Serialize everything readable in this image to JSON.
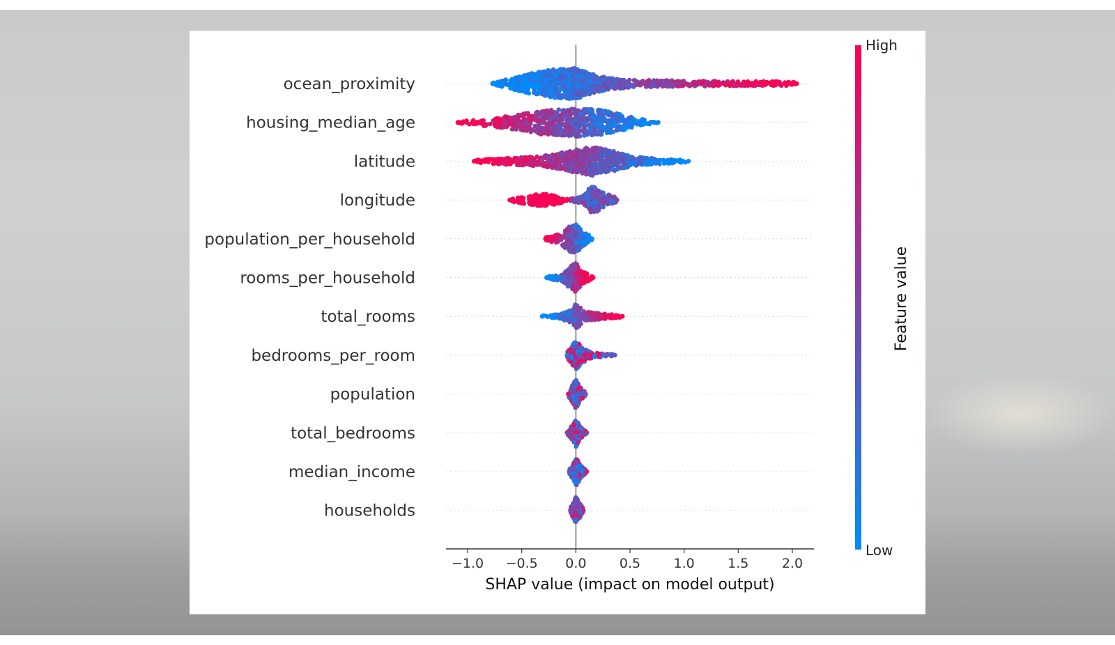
{
  "chart_data": {
    "type": "scatter",
    "subtype": "shap_beeswarm_summary",
    "xlabel": "SHAP value (impact on model output)",
    "xlim": [
      -1.2,
      2.2
    ],
    "xticks": [
      -1.0,
      -0.5,
      0.0,
      0.5,
      1.0,
      1.5,
      2.0
    ],
    "xtick_labels": [
      "−1.0",
      "−0.5",
      "0.0",
      "0.5",
      "1.0",
      "1.5",
      "2.0"
    ],
    "zero_line": 0.0,
    "colorbar": {
      "title": "Feature value",
      "high_label": "High",
      "low_label": "Low",
      "low_color": "#008bfb",
      "high_color": "#ff0052"
    },
    "features": [
      {
        "name": "ocean_proximity",
        "min": -0.77,
        "max": 2.04,
        "distribution": [
          [
            -0.77,
            0.05
          ],
          [
            -0.6,
            0.35
          ],
          [
            -0.4,
            0.7
          ],
          [
            -0.2,
            0.95
          ],
          [
            0.0,
            1.0
          ],
          [
            0.15,
            0.65
          ],
          [
            0.3,
            0.4
          ],
          [
            0.5,
            0.25
          ],
          [
            0.8,
            0.22
          ],
          [
            1.1,
            0.18
          ],
          [
            1.4,
            0.16
          ],
          [
            1.7,
            0.15
          ],
          [
            2.0,
            0.13
          ],
          [
            2.04,
            0.05
          ]
        ],
        "color_trend": "high_right"
      },
      {
        "name": "housing_median_age",
        "min": -1.09,
        "max": 0.76,
        "distribution": [
          [
            -1.09,
            0.08
          ],
          [
            -0.9,
            0.2
          ],
          [
            -0.7,
            0.35
          ],
          [
            -0.5,
            0.55
          ],
          [
            -0.3,
            0.8
          ],
          [
            -0.1,
            0.85
          ],
          [
            0.05,
            0.95
          ],
          [
            0.2,
            0.85
          ],
          [
            0.35,
            0.65
          ],
          [
            0.5,
            0.4
          ],
          [
            0.65,
            0.15
          ],
          [
            0.76,
            0.05
          ]
        ],
        "color_trend": "high_left"
      },
      {
        "name": "latitude",
        "min": -0.94,
        "max": 1.04,
        "distribution": [
          [
            -0.94,
            0.08
          ],
          [
            -0.7,
            0.2
          ],
          [
            -0.5,
            0.28
          ],
          [
            -0.3,
            0.35
          ],
          [
            -0.1,
            0.6
          ],
          [
            0.0,
            0.75
          ],
          [
            0.15,
            0.95
          ],
          [
            0.3,
            0.75
          ],
          [
            0.45,
            0.45
          ],
          [
            0.6,
            0.25
          ],
          [
            0.8,
            0.18
          ],
          [
            1.04,
            0.06
          ]
        ],
        "color_trend": "high_left"
      },
      {
        "name": "longitude",
        "min": -0.61,
        "max": 0.38,
        "distribution": [
          [
            -0.61,
            0.12
          ],
          [
            -0.45,
            0.28
          ],
          [
            -0.3,
            0.42
          ],
          [
            -0.15,
            0.22
          ],
          [
            -0.08,
            0.05
          ],
          [
            0.05,
            0.2
          ],
          [
            0.15,
            0.95
          ],
          [
            0.25,
            0.5
          ],
          [
            0.38,
            0.12
          ]
        ],
        "color_trend": "high_left_gap"
      },
      {
        "name": "population_per_household",
        "min": -0.28,
        "max": 0.15,
        "distribution": [
          [
            -0.28,
            0.1
          ],
          [
            -0.15,
            0.35
          ],
          [
            -0.05,
            0.85
          ],
          [
            0.0,
            1.0
          ],
          [
            0.05,
            0.55
          ],
          [
            0.15,
            0.12
          ]
        ],
        "color_trend": "high_left"
      },
      {
        "name": "rooms_per_household",
        "min": -0.27,
        "max": 0.16,
        "distribution": [
          [
            -0.27,
            0.08
          ],
          [
            -0.12,
            0.25
          ],
          [
            -0.05,
            0.75
          ],
          [
            0.0,
            1.0
          ],
          [
            0.06,
            0.4
          ],
          [
            0.16,
            0.1
          ]
        ],
        "color_trend": "high_right"
      },
      {
        "name": "total_rooms",
        "min": -0.31,
        "max": 0.43,
        "distribution": [
          [
            -0.31,
            0.05
          ],
          [
            -0.15,
            0.15
          ],
          [
            -0.03,
            0.45
          ],
          [
            0.0,
            0.85
          ],
          [
            0.08,
            0.3
          ],
          [
            0.25,
            0.18
          ],
          [
            0.43,
            0.06
          ]
        ],
        "color_trend": "high_right"
      },
      {
        "name": "bedrooms_per_room",
        "min": -0.08,
        "max": 0.36,
        "distribution": [
          [
            -0.08,
            0.2
          ],
          [
            0.0,
            0.95
          ],
          [
            0.06,
            0.5
          ],
          [
            0.15,
            0.2
          ],
          [
            0.3,
            0.08
          ],
          [
            0.36,
            0.05
          ]
        ],
        "color_trend": "mixed"
      },
      {
        "name": "population",
        "min": -0.07,
        "max": 0.09,
        "distribution": [
          [
            -0.07,
            0.15
          ],
          [
            -0.02,
            0.7
          ],
          [
            0.0,
            0.95
          ],
          [
            0.04,
            0.45
          ],
          [
            0.09,
            0.1
          ]
        ],
        "color_trend": "mixed"
      },
      {
        "name": "total_bedrooms",
        "min": -0.08,
        "max": 0.1,
        "distribution": [
          [
            -0.08,
            0.1
          ],
          [
            -0.02,
            0.6
          ],
          [
            0.0,
            0.95
          ],
          [
            0.04,
            0.4
          ],
          [
            0.1,
            0.1
          ]
        ],
        "color_trend": "mixed"
      },
      {
        "name": "median_income",
        "min": -0.06,
        "max": 0.1,
        "distribution": [
          [
            -0.06,
            0.15
          ],
          [
            -0.01,
            0.7
          ],
          [
            0.0,
            0.95
          ],
          [
            0.05,
            0.35
          ],
          [
            0.1,
            0.1
          ]
        ],
        "color_trend": "mixed"
      },
      {
        "name": "households",
        "min": -0.05,
        "max": 0.07,
        "distribution": [
          [
            -0.05,
            0.15
          ],
          [
            -0.01,
            0.7
          ],
          [
            0.0,
            0.9
          ],
          [
            0.04,
            0.45
          ],
          [
            0.07,
            0.1
          ]
        ],
        "color_trend": "mixed"
      }
    ]
  }
}
